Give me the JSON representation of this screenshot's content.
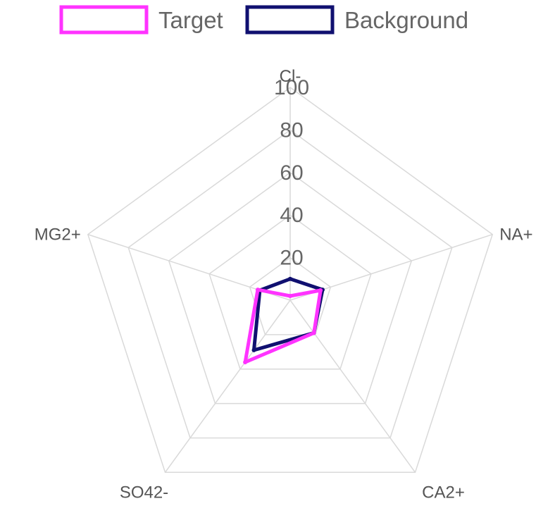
{
  "chart_data": {
    "type": "radar",
    "axes": [
      "Cl-",
      "NA+",
      "CA2+",
      "SO42-",
      "MG2+"
    ],
    "ticks": [
      "20",
      "40",
      "60",
      "80",
      "100"
    ],
    "range": [
      0,
      100
    ],
    "grid": true,
    "legend_position": "top",
    "series": [
      {
        "name": "Target",
        "values": [
          2,
          15,
          19,
          36,
          16
        ],
        "color": "#ff33ff"
      },
      {
        "name": "Background",
        "values": [
          10,
          16,
          19,
          29,
          15
        ],
        "color": "#101070"
      }
    ]
  }
}
